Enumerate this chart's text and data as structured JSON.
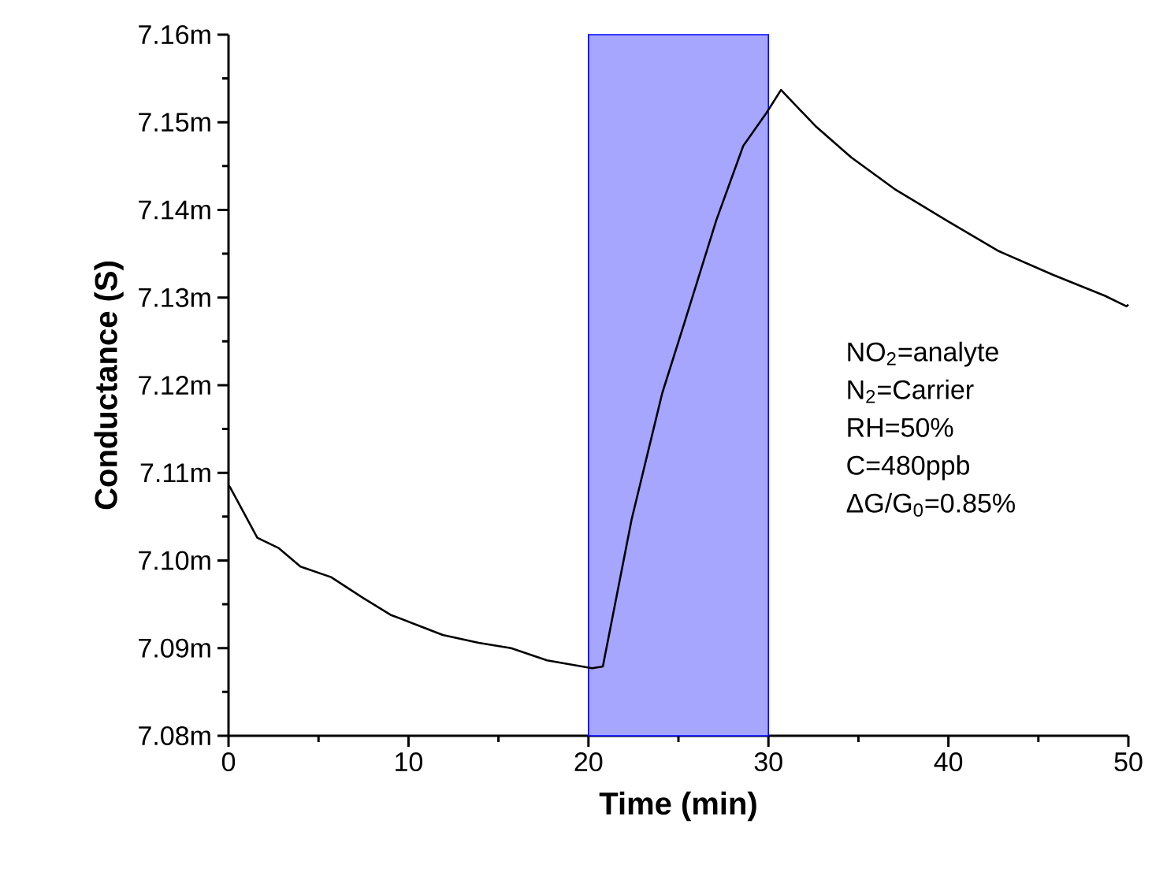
{
  "chart_data": {
    "type": "line",
    "xlabel": "Time (min)",
    "ylabel": "Conductance (S)",
    "xlim": [
      0,
      50
    ],
    "xticks": [
      0,
      10,
      20,
      30,
      40,
      50
    ],
    "ylim": [
      7.08,
      7.16
    ],
    "yticks": [
      {
        "value": 7.08,
        "label": "7.08m"
      },
      {
        "value": 7.09,
        "label": "7.09m"
      },
      {
        "value": 7.1,
        "label": "7.10m"
      },
      {
        "value": 7.11,
        "label": "7.11m"
      },
      {
        "value": 7.12,
        "label": "7.12m"
      },
      {
        "value": 7.13,
        "label": "7.13m"
      },
      {
        "value": 7.14,
        "label": "7.14m"
      },
      {
        "value": 7.15,
        "label": "7.15m"
      },
      {
        "value": 7.16,
        "label": "7.16m"
      }
    ],
    "series": [
      {
        "color": "#000000",
        "x": [
          0,
          0.1,
          1.6,
          2.8,
          4.0,
          5.7,
          7.5,
          9.0,
          10.4,
          11.9,
          13.9,
          15.7,
          17.7,
          20.2,
          20.8,
          22.4,
          24.1,
          25.3,
          27.1,
          28.6,
          29.9,
          30.7,
          32.6,
          34.6,
          37.0,
          39.9,
          42.8,
          45.8,
          48.7,
          49.9,
          50
        ],
        "values": [
          7.1086,
          7.1083,
          7.1026,
          7.1014,
          7.0993,
          7.0981,
          7.0957,
          7.0938,
          7.0927,
          7.0915,
          7.0906,
          7.09,
          7.0886,
          7.0877,
          7.0879,
          7.1047,
          7.1191,
          7.1269,
          7.1388,
          7.1473,
          7.1511,
          7.1537,
          7.1496,
          7.146,
          7.1424,
          7.1388,
          7.1353,
          7.1326,
          7.1302,
          7.129,
          7.1292
        ]
      }
    ],
    "bands": [
      {
        "axis": "x",
        "from": 20,
        "to": 30,
        "color": "#0000ff"
      }
    ],
    "annotations": [
      "NO$_{2}$=analyte",
      "N$_{2}$=Carrier",
      "RH=50%",
      "C=480ppb",
      "ΔG/G$_{0}$=0.85%"
    ],
    "grid": false,
    "marker": "none",
    "line_style": "solid"
  }
}
